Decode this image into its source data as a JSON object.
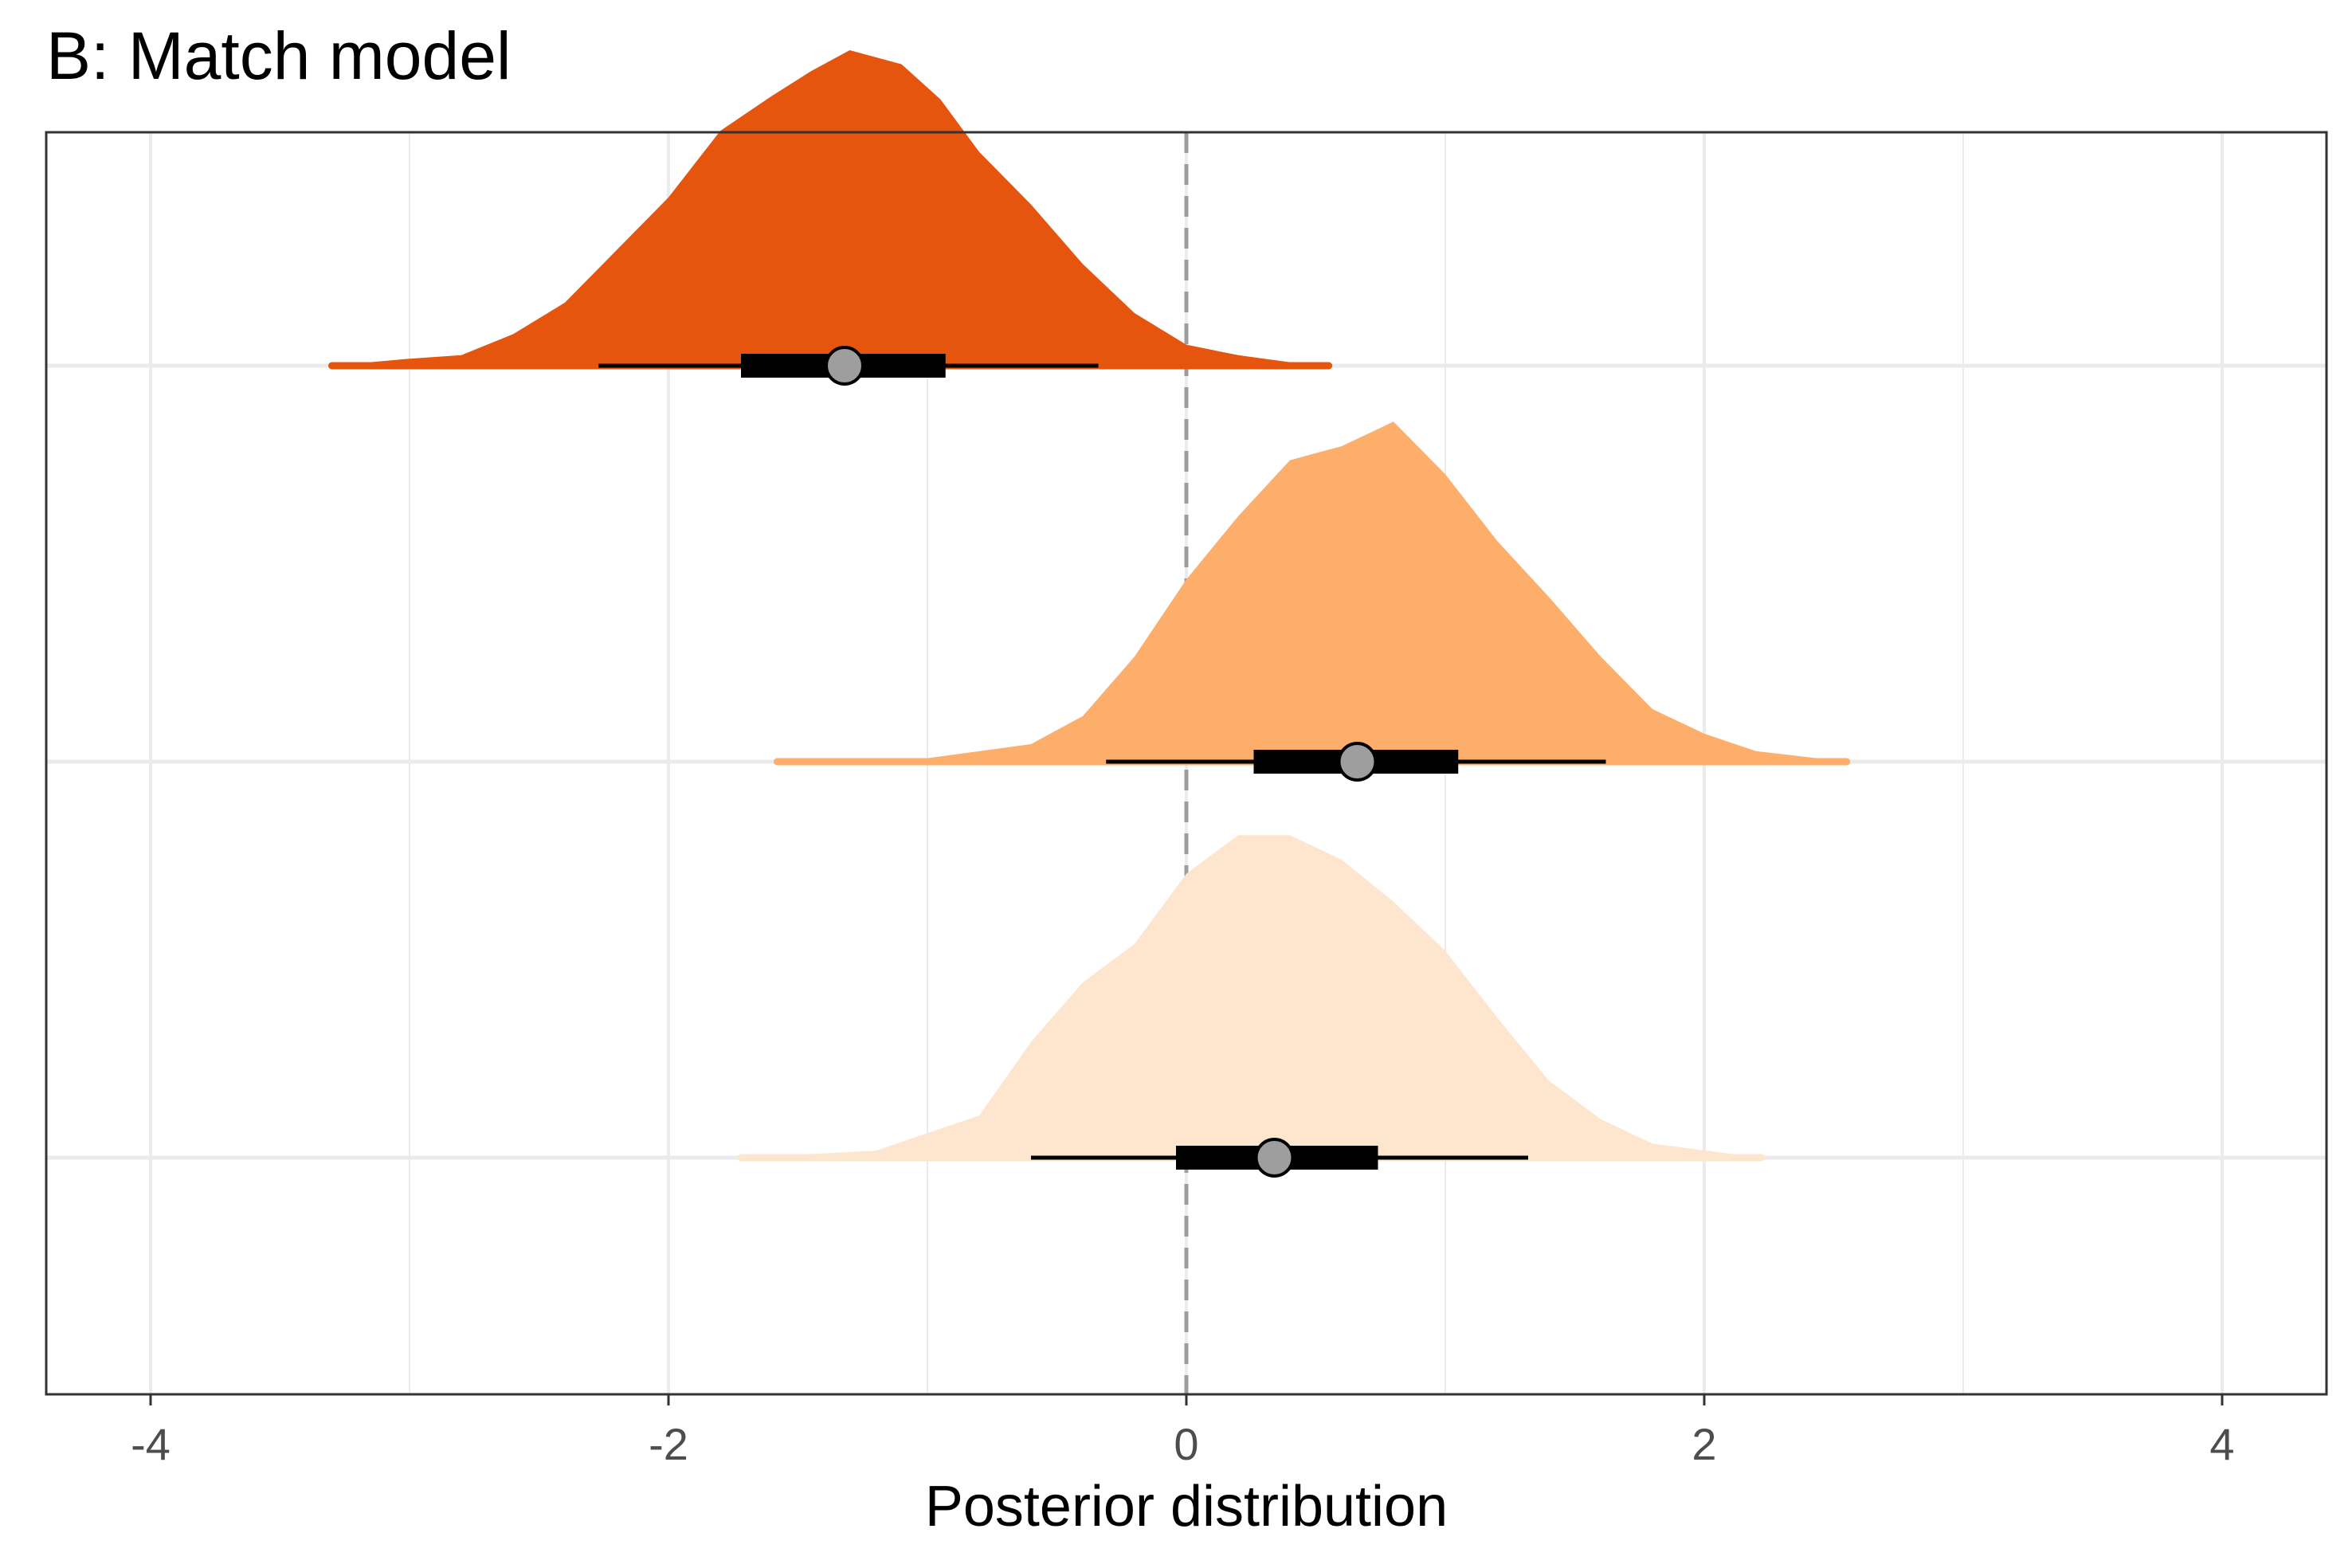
{
  "chart_data": {
    "type": "density-interval",
    "title": "B: Match model",
    "xlabel": "Posterior distribution",
    "ylabel": "",
    "xlim": [
      -4.4,
      4.4
    ],
    "x_ticks": [
      "-4",
      "-2",
      "0",
      "2",
      "4"
    ],
    "x_tick_values": [
      -4,
      -2,
      0,
      2,
      4
    ],
    "grid": true,
    "reference_line": {
      "x": 0,
      "style": "dashed",
      "color": "#9e9e9e"
    },
    "series": [
      {
        "color": "#e6550d",
        "range": [
          -3.3,
          0.55
        ],
        "median": -1.32,
        "interval_66": [
          -1.72,
          -0.93
        ],
        "interval_95": [
          -2.27,
          -0.34
        ],
        "density": [
          [
            -3.3,
            0.0
          ],
          [
            -3.0,
            0.02
          ],
          [
            -2.8,
            0.03
          ],
          [
            -2.6,
            0.09
          ],
          [
            -2.4,
            0.18
          ],
          [
            -2.2,
            0.33
          ],
          [
            -2.0,
            0.48
          ],
          [
            -1.8,
            0.67
          ],
          [
            -1.6,
            0.77
          ],
          [
            -1.45,
            0.84
          ],
          [
            -1.3,
            0.9
          ],
          [
            -1.1,
            0.86
          ],
          [
            -0.95,
            0.76
          ],
          [
            -0.8,
            0.61
          ],
          [
            -0.6,
            0.46
          ],
          [
            -0.4,
            0.29
          ],
          [
            -0.2,
            0.15
          ],
          [
            0.0,
            0.06
          ],
          [
            0.2,
            0.03
          ],
          [
            0.4,
            0.01
          ],
          [
            0.55,
            0.0
          ]
        ]
      },
      {
        "color": "#fdae6b",
        "range": [
          -1.58,
          2.55
        ],
        "median": 0.66,
        "interval_66": [
          0.26,
          1.05
        ],
        "interval_95": [
          -0.31,
          1.62
        ],
        "density": [
          [
            -1.58,
            0.0
          ],
          [
            -1.0,
            0.01
          ],
          [
            -0.6,
            0.05
          ],
          [
            -0.4,
            0.13
          ],
          [
            -0.2,
            0.3
          ],
          [
            0.0,
            0.52
          ],
          [
            0.2,
            0.7
          ],
          [
            0.4,
            0.86
          ],
          [
            0.6,
            0.9
          ],
          [
            0.8,
            0.97
          ],
          [
            1.0,
            0.82
          ],
          [
            1.2,
            0.63
          ],
          [
            1.4,
            0.47
          ],
          [
            1.6,
            0.3
          ],
          [
            1.8,
            0.15
          ],
          [
            2.0,
            0.08
          ],
          [
            2.2,
            0.03
          ],
          [
            2.55,
            0.0
          ]
        ]
      },
      {
        "color": "#fee6ce",
        "range": [
          -1.72,
          2.22
        ],
        "median": 0.34,
        "interval_66": [
          -0.04,
          0.74
        ],
        "interval_95": [
          -0.6,
          1.32
        ],
        "density": [
          [
            -1.72,
            0.0
          ],
          [
            -1.2,
            0.02
          ],
          [
            -0.8,
            0.12
          ],
          [
            -0.6,
            0.33
          ],
          [
            -0.4,
            0.5
          ],
          [
            -0.2,
            0.61
          ],
          [
            0.0,
            0.81
          ],
          [
            0.2,
            0.92
          ],
          [
            0.4,
            0.92
          ],
          [
            0.6,
            0.85
          ],
          [
            0.8,
            0.73
          ],
          [
            1.0,
            0.59
          ],
          [
            1.2,
            0.4
          ],
          [
            1.4,
            0.22
          ],
          [
            1.6,
            0.11
          ],
          [
            1.8,
            0.04
          ],
          [
            2.22,
            0.0
          ]
        ]
      }
    ]
  }
}
